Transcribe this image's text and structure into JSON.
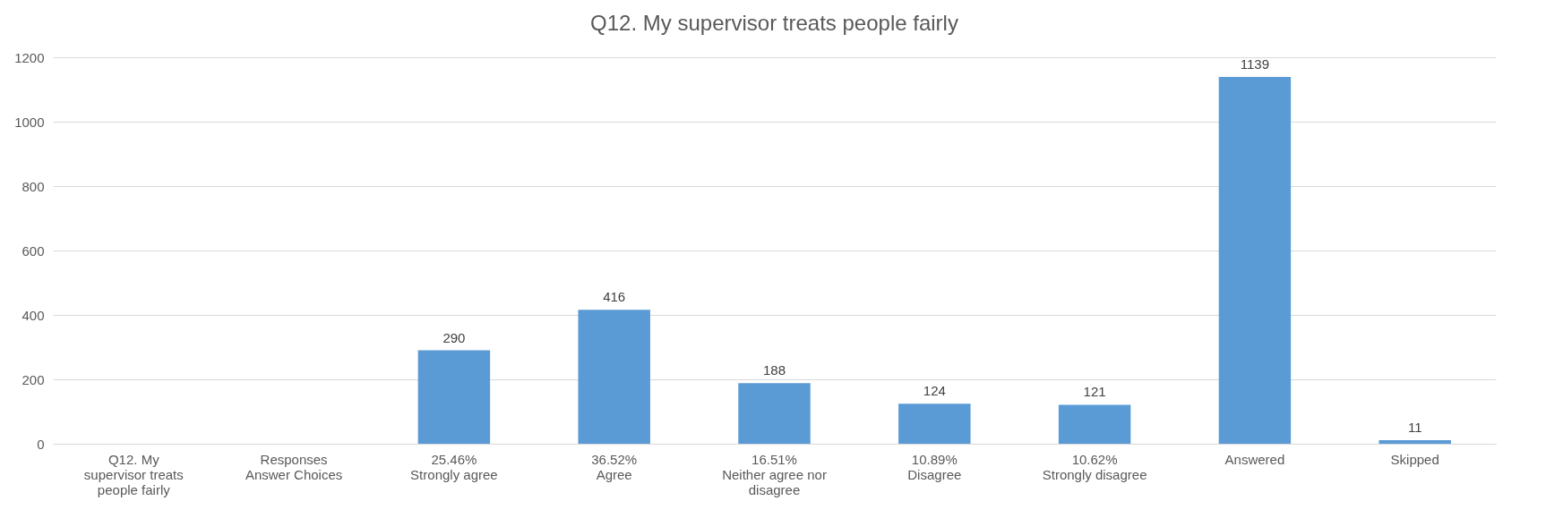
{
  "chart_data": {
    "type": "bar",
    "title": "Q12. My supervisor treats people fairly",
    "categories": [
      "Q12. My\nsupervisor treats\npeople fairly",
      "Responses\nAnswer Choices",
      "25.46%\nStrongly agree",
      "36.52%\nAgree",
      "16.51%\nNeither agree nor\ndisagree",
      "10.89%\nDisagree",
      "10.62%\nStrongly disagree",
      "Answered",
      "Skipped"
    ],
    "values": [
      null,
      null,
      290,
      416,
      188,
      124,
      121,
      1139,
      11
    ],
    "color": "#5b9bd5",
    "ylim": [
      0,
      1200
    ],
    "yticks": [
      0,
      200,
      400,
      600,
      800,
      1000,
      1200
    ],
    "grid": "y",
    "data_labels": true
  }
}
